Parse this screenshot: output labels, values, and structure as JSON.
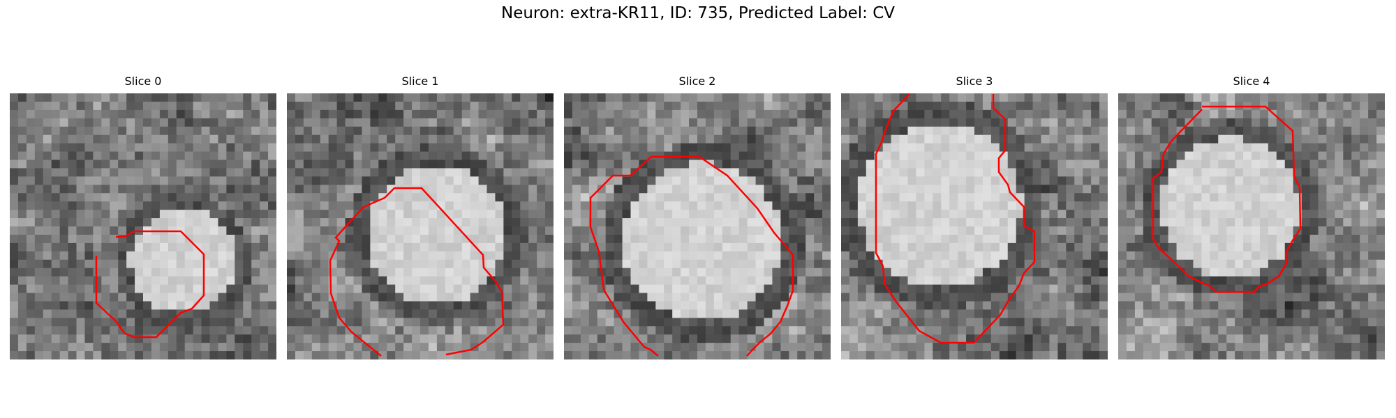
{
  "figure": {
    "title": "Neuron: extra-KR11, ID: 735, Predicted Label: CV",
    "contour_color": "#ff0000"
  },
  "panels": [
    {
      "title": "Slice 0",
      "image": "grayscale-microscopy-slice",
      "cell_center": [
        0.65,
        0.63
      ],
      "cell_radius": 0.22
    },
    {
      "title": "Slice 1",
      "image": "grayscale-microscopy-slice",
      "cell_center": [
        0.56,
        0.53
      ],
      "cell_radius": 0.29
    },
    {
      "title": "Slice 2",
      "image": "grayscale-microscopy-slice",
      "cell_center": [
        0.52,
        0.56
      ],
      "cell_radius": 0.33
    },
    {
      "title": "Slice 3",
      "image": "grayscale-microscopy-slice",
      "cell_center": [
        0.37,
        0.42
      ],
      "cell_radius": 0.34
    },
    {
      "title": "Slice 4",
      "image": "grayscale-microscopy-slice",
      "cell_center": [
        0.42,
        0.43
      ],
      "cell_radius": 0.29
    }
  ]
}
